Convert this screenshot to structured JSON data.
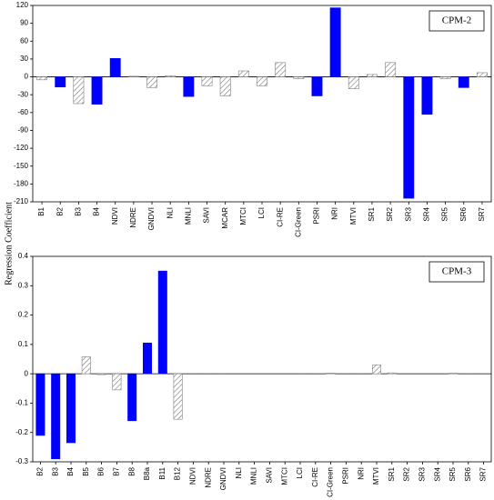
{
  "y_label": "Regression Coefficient",
  "chart_data": [
    {
      "type": "bar",
      "title": "CPM-2",
      "categories": [
        "B1",
        "B2",
        "B3",
        "B4",
        "NDVI",
        "NDRE",
        "GNDVI",
        "NLI",
        "MNLI",
        "SAVI",
        "MCAR",
        "MTCI",
        "LCI",
        "CI-RE",
        "CI-Green",
        "PSRI",
        "NRI",
        "MTVI",
        "SR1",
        "SR2",
        "SR3",
        "SR4",
        "SR5",
        "SR6",
        "SR7"
      ],
      "values": [
        -5,
        -17,
        -45,
        -46,
        31,
        1,
        -18,
        2,
        -33,
        -15,
        -32,
        10,
        -15,
        24,
        -3,
        -32,
        116,
        -20,
        4,
        24,
        -204,
        -63,
        -3,
        -18,
        7
      ],
      "bar_styles": [
        "hatched",
        "solid",
        "hatched",
        "solid",
        "solid",
        "hatched",
        "hatched",
        "hatched",
        "solid",
        "hatched",
        "hatched",
        "hatched",
        "hatched",
        "hatched",
        "hatched",
        "solid",
        "solid",
        "hatched",
        "hatched",
        "hatched",
        "solid",
        "solid",
        "hatched",
        "solid",
        "hatched"
      ],
      "color": "#0000ff",
      "hatch_color": "#808080",
      "ylim": [
        -210,
        120
      ],
      "yticks": [
        -210,
        -180,
        -150,
        -120,
        -90,
        -60,
        -30,
        0,
        30,
        60,
        90,
        120
      ]
    },
    {
      "type": "bar",
      "title": "CPM-3",
      "categories": [
        "B2",
        "B3",
        "B4",
        "B5",
        "B6",
        "B7",
        "B8",
        "B8a",
        "B11",
        "B12",
        "NDVI",
        "NDRE",
        "GNDVI",
        "NLI",
        "MNLI",
        "SAVI",
        "MTCI",
        "LCI",
        "CI-RE",
        "CI-Green",
        "PSRI",
        "NRI",
        "MTVI",
        "SR1",
        "SR2",
        "SR3",
        "SR4",
        "SR5",
        "SR6",
        "SR7"
      ],
      "values": [
        -0.21,
        -0.29,
        -0.235,
        0.058,
        -0.003,
        -0.055,
        -0.16,
        0.105,
        0.35,
        -0.155,
        0,
        0,
        0,
        -0.001,
        -0.001,
        0,
        -0.001,
        -0.001,
        0,
        0.002,
        -0.001,
        0,
        0.03,
        0.003,
        0,
        0,
        0,
        0.002,
        -0.001,
        0
      ],
      "bar_styles": [
        "solid",
        "solid",
        "solid",
        "hatched",
        "hatched",
        "hatched",
        "solid",
        "solid",
        "solid",
        "hatched",
        "hatched",
        "hatched",
        "hatched",
        "hatched",
        "hatched",
        "hatched",
        "hatched",
        "hatched",
        "hatched",
        "hatched",
        "hatched",
        "hatched",
        "hatched",
        "hatched",
        "hatched",
        "hatched",
        "hatched",
        "hatched",
        "hatched",
        "hatched"
      ],
      "color": "#0000ff",
      "hatch_color": "#808080",
      "ylim": [
        -0.3,
        0.4
      ],
      "yticks": [
        -0.3,
        -0.2,
        -0.1,
        0,
        0.1,
        0.2,
        0.3,
        0.4
      ]
    }
  ]
}
